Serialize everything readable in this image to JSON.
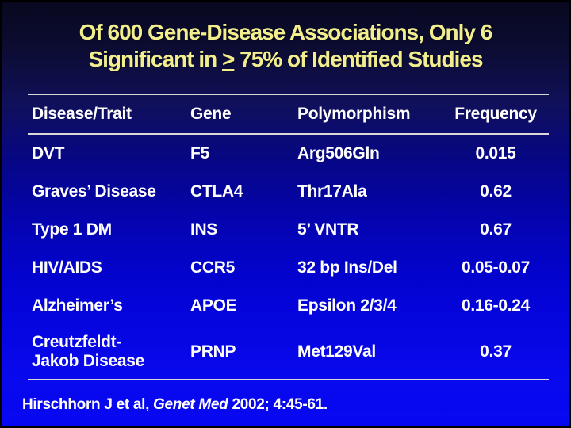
{
  "slide": {
    "title": {
      "line1": "Of 600 Gene-Disease Associations, Only 6",
      "line2_prefix": "Significant in ",
      "line2_gte": ">",
      "line2_suffix": " 75% of Identified Studies"
    },
    "table": {
      "headers": [
        "Disease/Trait",
        "Gene",
        "Polymorphism",
        "Frequency"
      ],
      "rows": [
        [
          "DVT",
          "F5",
          "Arg506Gln",
          "0.015"
        ],
        [
          "Graves’ Disease",
          "CTLA4",
          "Thr17Ala",
          "0.62"
        ],
        [
          "Type 1 DM",
          "INS",
          "5’ VNTR",
          "0.67"
        ],
        [
          "HIV/AIDS",
          "CCR5",
          "32 bp Ins/Del",
          "0.05-0.07"
        ],
        [
          "Alzheimer’s",
          "APOE",
          "Epsilon 2/3/4",
          "0.16-0.24"
        ],
        [
          "Creutzfeldt-\nJakob Disease",
          "PRNP",
          "Met129Val",
          "0.37"
        ]
      ]
    },
    "citation": {
      "prefix": "Hirschhorn J et al, ",
      "journal": "Genet Med",
      "suffix": " 2002; 4:45-61."
    },
    "colors": {
      "background_top": "#08081e",
      "background_bottom": "#0707f2",
      "title_text": "#f2ed8d",
      "table_text": "#ffffff",
      "rule": "#d9d9d9"
    }
  }
}
